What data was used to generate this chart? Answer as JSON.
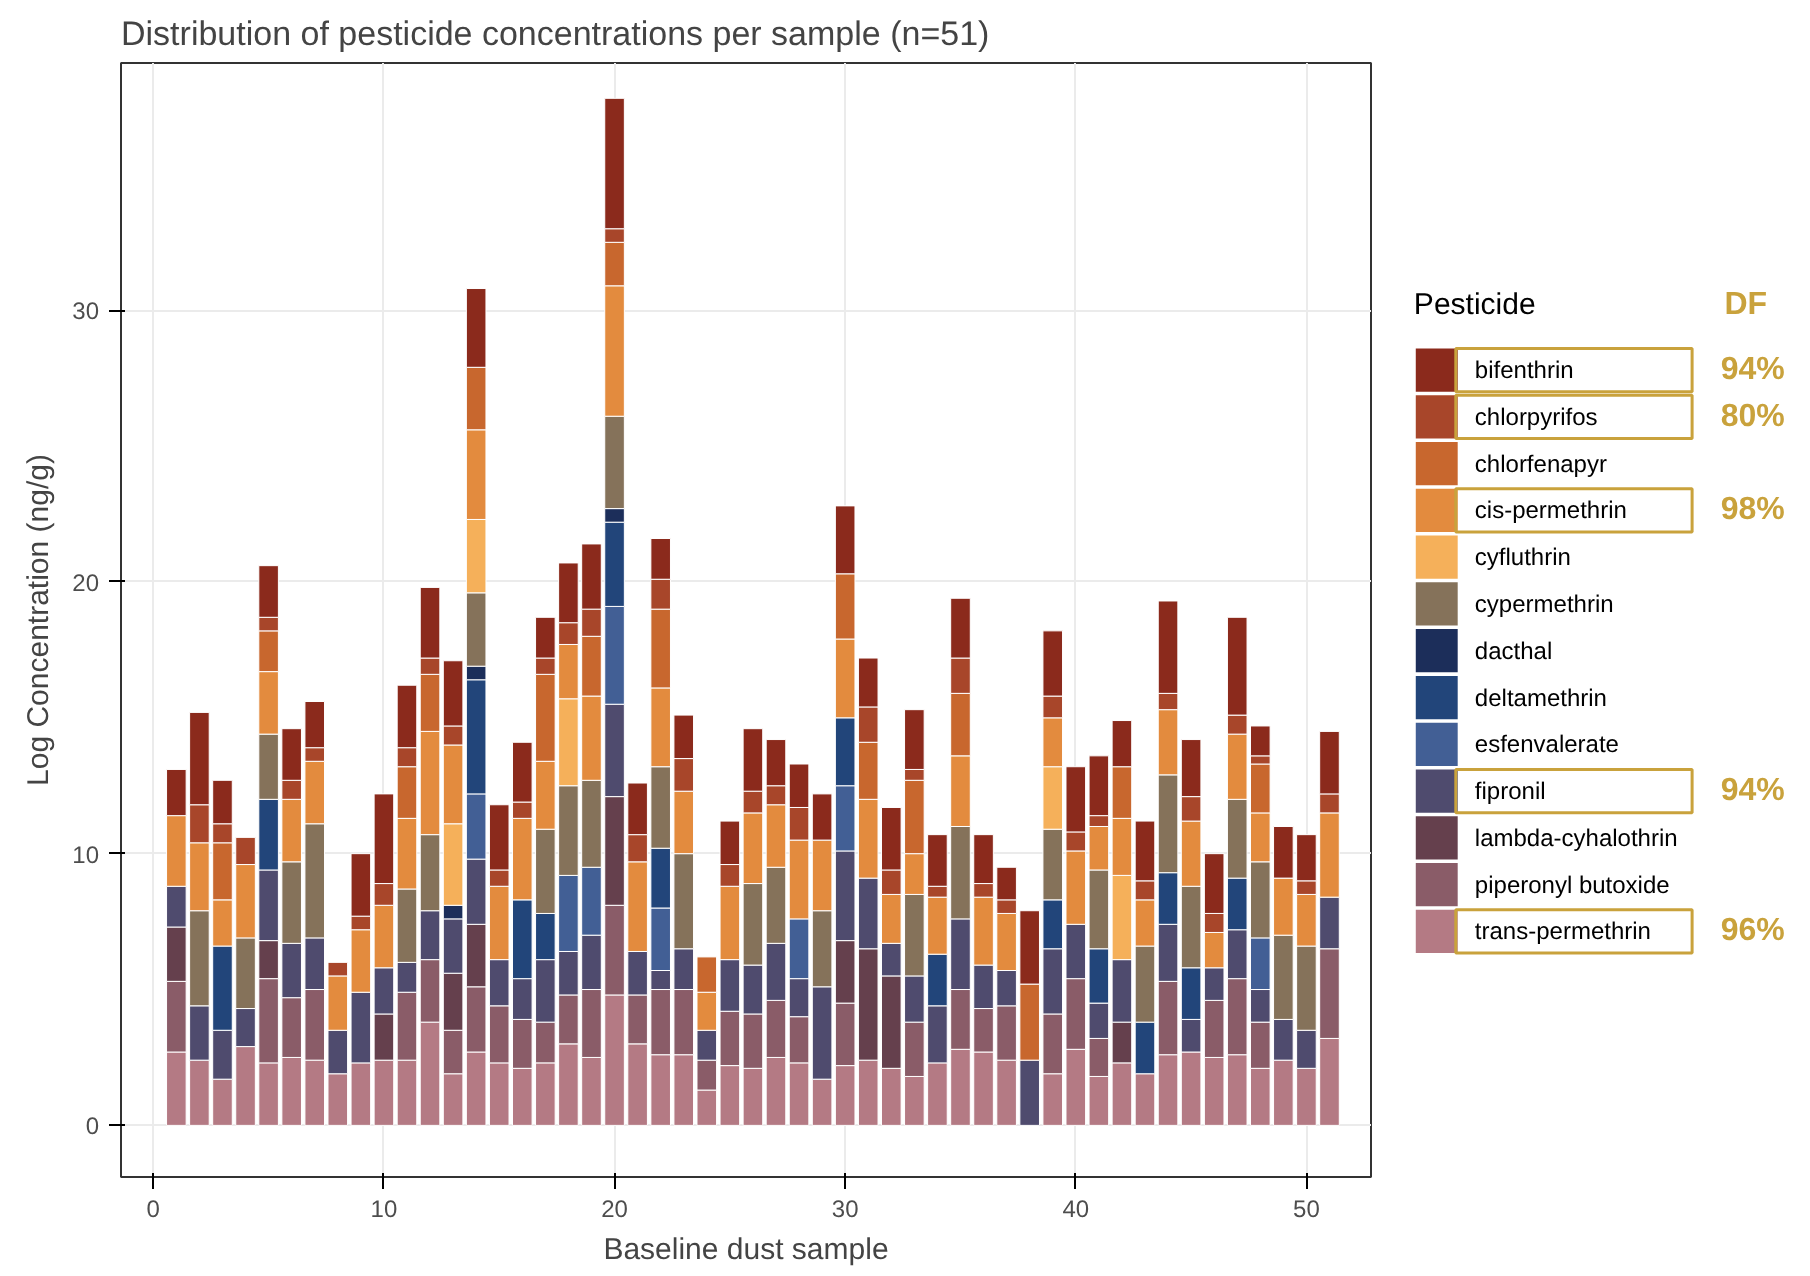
{
  "chart_data": {
    "type": "bar",
    "stacked": true,
    "title": "Distribution of pesticide concentrations per sample (n=51)",
    "xlabel": "Baseline dust sample",
    "ylabel": "Log Concentration (ng/g)",
    "legend_title": "Pesticide",
    "legend": "right",
    "grid": true,
    "x": [
      1,
      2,
      3,
      4,
      5,
      6,
      7,
      8,
      9,
      10,
      11,
      12,
      13,
      14,
      15,
      16,
      17,
      18,
      19,
      20,
      21,
      22,
      23,
      24,
      25,
      26,
      27,
      28,
      29,
      30,
      31,
      32,
      33,
      34,
      35,
      36,
      37,
      38,
      39,
      40,
      41,
      42,
      43,
      44,
      45,
      46,
      47,
      48,
      49,
      50,
      51
    ],
    "xlim": [
      -1.4,
      52.8
    ],
    "xticks": [
      0,
      10,
      20,
      30,
      40,
      50
    ],
    "ylim": [
      -1.9,
      39.1
    ],
    "yticks": [
      0,
      10,
      20,
      30
    ],
    "annotations": [
      "DF",
      "94%",
      "80%",
      "98%",
      "94%",
      "96%"
    ],
    "series": [
      {
        "name": "trans-permethrin",
        "color": "#b47a84",
        "values": [
          2.7,
          2.4,
          1.7,
          2.9,
          2.3,
          2.5,
          2.4,
          1.9,
          2.3,
          2.4,
          2.4,
          3.8,
          1.9,
          2.7,
          2.3,
          2.1,
          2.3,
          3.0,
          2.5,
          4.8,
          3.0,
          2.6,
          2.6,
          1.3,
          2.2,
          2.1,
          2.5,
          2.3,
          1.7,
          2.2,
          2.4,
          2.1,
          1.8,
          2.3,
          2.8,
          2.7,
          2.4,
          0,
          1.9,
          2.8,
          1.8,
          2.3,
          1.9,
          2.6,
          2.7,
          2.5,
          2.6,
          2.1,
          2.4,
          2.1,
          3.2
        ]
      },
      {
        "name": "piperonyl butoxide",
        "color": "#8a5c68",
        "values": [
          2.6,
          0,
          0,
          0,
          3.1,
          2.2,
          2.6,
          0,
          0,
          0,
          2.5,
          2.3,
          1.6,
          2.4,
          2.1,
          1.8,
          1.5,
          1.8,
          2.5,
          3.3,
          1.8,
          2.4,
          2.4,
          1.1,
          2.0,
          2.0,
          2.1,
          1.7,
          0,
          2.3,
          0,
          0,
          2.0,
          0,
          2.2,
          1.6,
          2.0,
          0,
          2.2,
          2.6,
          1.4,
          0,
          0,
          2.7,
          0,
          2.1,
          2.8,
          1.7,
          0,
          0,
          3.3
        ]
      },
      {
        "name": "lambda-cyhalothrin",
        "color": "#65404d",
        "values": [
          2.0,
          0,
          0,
          0,
          1.4,
          0,
          0,
          0,
          0,
          1.7,
          0,
          0,
          2.1,
          2.3,
          0,
          0,
          0,
          0,
          0,
          4.0,
          0,
          0,
          0,
          0,
          0,
          0,
          0,
          0,
          0,
          2.3,
          4.1,
          3.4,
          0,
          0,
          0,
          0,
          0,
          0,
          0,
          0,
          0,
          1.5,
          0,
          0,
          0,
          0,
          0,
          0,
          0,
          0,
          0
        ]
      },
      {
        "name": "fipronil",
        "color": "#4f4b6e",
        "values": [
          1.5,
          2.0,
          1.8,
          1.4,
          2.6,
          2.0,
          1.9,
          1.6,
          2.6,
          1.7,
          1.1,
          1.8,
          2.0,
          2.4,
          1.7,
          1.5,
          2.3,
          1.6,
          2.0,
          3.4,
          1.6,
          0.7,
          1.5,
          1.1,
          1.9,
          1.8,
          2.1,
          1.4,
          3.4,
          3.3,
          2.6,
          1.2,
          1.7,
          2.1,
          2.6,
          1.6,
          1.3,
          2.4,
          2.4,
          2.0,
          1.3,
          2.3,
          0,
          2.1,
          1.2,
          1.2,
          1.8,
          1.2,
          1.5,
          1.4,
          1.9
        ]
      },
      {
        "name": "esfenvalerate",
        "color": "#425f95",
        "values": [
          0,
          0,
          0,
          0,
          0,
          0,
          0,
          0,
          0,
          0,
          0,
          0,
          0,
          2.4,
          0,
          0,
          0,
          2.8,
          2.5,
          3.6,
          0,
          2.3,
          0,
          0,
          0,
          0,
          0,
          2.2,
          0,
          2.4,
          0,
          0,
          0,
          0,
          0,
          0,
          0,
          0,
          0,
          0,
          0,
          0,
          0,
          0,
          0,
          0,
          0,
          1.9,
          0,
          0,
          0
        ]
      },
      {
        "name": "deltamethrin",
        "color": "#22457a",
        "values": [
          0,
          0,
          3.1,
          0,
          2.6,
          0,
          0,
          0,
          0,
          0,
          0,
          0,
          0,
          4.2,
          0,
          2.9,
          1.7,
          0,
          0,
          3.1,
          0,
          2.2,
          0,
          0,
          0,
          0,
          0,
          0,
          0,
          2.5,
          0,
          0,
          0,
          1.9,
          0,
          0,
          0,
          0,
          1.8,
          0,
          2.0,
          0,
          1.9,
          1.9,
          1.9,
          0,
          1.9,
          0,
          0,
          0,
          0
        ]
      },
      {
        "name": "dacthal",
        "color": "#1c2e5a",
        "values": [
          0,
          0,
          0,
          0,
          0,
          0,
          0,
          0,
          0,
          0,
          0,
          0,
          0.5,
          0.5,
          0,
          0,
          0,
          0,
          0,
          0.5,
          0,
          0,
          0,
          0,
          0,
          0,
          0,
          0,
          0,
          0,
          0,
          0,
          0,
          0,
          0,
          0,
          0,
          0,
          0,
          0,
          0,
          0,
          0,
          0,
          0,
          0,
          0,
          0,
          0,
          0,
          0
        ]
      },
      {
        "name": "cypermethrin",
        "color": "#85725a",
        "values": [
          0,
          3.5,
          0,
          2.6,
          2.4,
          3.0,
          4.2,
          0,
          0,
          0,
          2.7,
          2.8,
          0,
          2.7,
          0,
          0,
          3.1,
          3.3,
          3.2,
          3.4,
          0,
          3.0,
          3.5,
          0,
          0,
          3.0,
          2.8,
          0,
          2.8,
          0,
          0,
          0,
          3.0,
          0,
          3.4,
          0,
          0,
          0,
          2.6,
          0,
          2.9,
          0,
          2.8,
          3.6,
          3.0,
          0,
          2.9,
          2.8,
          3.1,
          3.1,
          0
        ]
      },
      {
        "name": "cyfluthrin",
        "color": "#f5b05a",
        "values": [
          0,
          0,
          0,
          0,
          0,
          0,
          0,
          0,
          0,
          0,
          0,
          0,
          3.0,
          2.7,
          0,
          0,
          0,
          3.2,
          0,
          0,
          0,
          0,
          0,
          0,
          0,
          0,
          0,
          0,
          0,
          0,
          0,
          0,
          0,
          0,
          0,
          0,
          0,
          0,
          2.3,
          0,
          0,
          3.1,
          0,
          0,
          0,
          0,
          0,
          0,
          0,
          0,
          0
        ]
      },
      {
        "name": "cis-permethrin",
        "color": "#e38b3e",
        "values": [
          2.6,
          2.5,
          1.7,
          2.7,
          2.3,
          2.3,
          2.3,
          2.0,
          2.3,
          2.3,
          2.6,
          3.8,
          2.9,
          3.3,
          2.7,
          3.0,
          2.5,
          2.0,
          3.1,
          4.8,
          3.3,
          2.9,
          2.3,
          1.4,
          2.7,
          2.6,
          2.3,
          2.9,
          2.6,
          2.9,
          2.9,
          1.8,
          1.5,
          2.1,
          2.6,
          2.5,
          2.1,
          0,
          1.8,
          2.7,
          1.6,
          2.1,
          1.7,
          2.4,
          2.4,
          1.3,
          2.4,
          1.8,
          2.1,
          1.9,
          3.1
        ]
      },
      {
        "name": "chlorfenapyr",
        "color": "#c8672e",
        "values": [
          0,
          0,
          2.1,
          0,
          1.5,
          0,
          0,
          0,
          0,
          0,
          1.9,
          2.1,
          0,
          2.3,
          0,
          0,
          3.2,
          0,
          2.2,
          1.6,
          0,
          2.9,
          0,
          1.3,
          0,
          0,
          0,
          0,
          0,
          2.4,
          2.1,
          0,
          2.7,
          0,
          2.3,
          0,
          0,
          2.8,
          0,
          0,
          0,
          1.9,
          0,
          0,
          0,
          0,
          0,
          1.8,
          0,
          0,
          0
        ]
      },
      {
        "name": "chlorpyrifos",
        "color": "#a8462a",
        "values": [
          0,
          1.4,
          0.7,
          1.0,
          0.5,
          0.7,
          0.5,
          0.5,
          0.5,
          0.8,
          0.7,
          0.6,
          0.7,
          0,
          0.6,
          0.6,
          0.6,
          0.8,
          1.0,
          0.5,
          1.0,
          1.1,
          1.2,
          0,
          0.8,
          0.8,
          0.7,
          1.2,
          0,
          0,
          1.3,
          0.9,
          0.4,
          0.4,
          1.3,
          0.5,
          0.5,
          0,
          0.8,
          0.7,
          0.4,
          0,
          0.7,
          0.6,
          0.9,
          0.7,
          0.7,
          0.3,
          0,
          0.5,
          0.7
        ]
      },
      {
        "name": "bifenthrin",
        "color": "#8b2a1c",
        "values": [
          1.7,
          3.4,
          1.6,
          0,
          1.9,
          1.9,
          1.7,
          0,
          2.3,
          3.3,
          2.3,
          2.6,
          2.4,
          2.9,
          2.4,
          2.2,
          1.5,
          2.2,
          2.4,
          4.8,
          1.9,
          1.5,
          1.6,
          0,
          1.6,
          2.3,
          1.7,
          1.6,
          1.7,
          2.5,
          1.8,
          2.3,
          2.2,
          1.9,
          2.2,
          1.8,
          1.2,
          2.7,
          2.4,
          2.4,
          2.2,
          1.7,
          2.2,
          3.4,
          2.1,
          2.2,
          3.6,
          1.1,
          1.9,
          1.7,
          2.3
        ]
      }
    ]
  }
}
